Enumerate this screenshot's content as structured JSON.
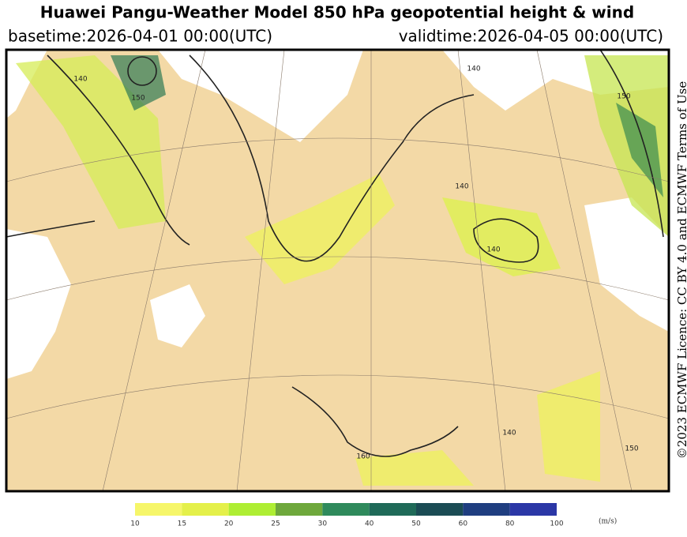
{
  "header": {
    "title": "Huawei Pangu-Weather Model 850 hPa geopotential height & wind",
    "basetime": "basetime:2026-04-01 00:00(UTC)",
    "validtime": "validtime:2026-04-05 00:00(UTC)"
  },
  "credit": "©2023 ECMWF Licence: CC BY 4.0 and ECMWF Terms of Use",
  "contour_labels": [
    "140",
    "150",
    "140",
    "140",
    "140",
    "140",
    "150",
    "160",
    "150"
  ],
  "colorbar": {
    "levels": [
      10,
      15,
      20,
      25,
      30,
      40,
      50,
      60,
      80,
      100
    ],
    "colors": [
      "#f6f66a",
      "#e4f04a",
      "#aeee33",
      "#6ea83c",
      "#2f8a5c",
      "#1f6a58",
      "#1b4c54",
      "#1f3e80",
      "#2b37a6"
    ],
    "unit": "(m/s)"
  }
}
